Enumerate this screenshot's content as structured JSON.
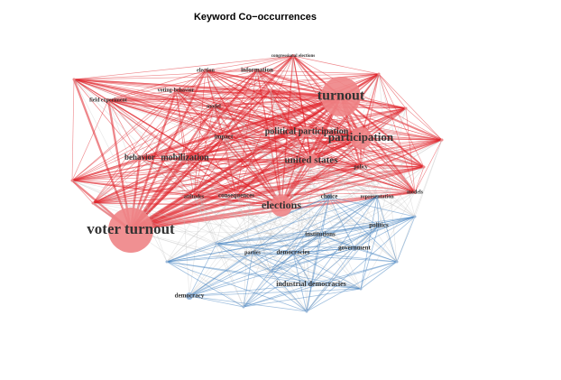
{
  "title": "Keyword Co−occurrences",
  "nodes": [
    {
      "label": "turnout"
    },
    {
      "label": "participation"
    },
    {
      "label": "voter turnout"
    },
    {
      "label": "elections"
    },
    {
      "label": "united states"
    },
    {
      "label": "political participation"
    },
    {
      "label": "behavior"
    },
    {
      "label": "mobilization"
    },
    {
      "label": "field experiment"
    },
    {
      "label": "voting-behavior"
    },
    {
      "label": "election"
    },
    {
      "label": "information"
    },
    {
      "label": "congressional elections"
    },
    {
      "label": "model"
    },
    {
      "label": "impact"
    },
    {
      "label": "attitudes"
    },
    {
      "label": "consequences"
    },
    {
      "label": "policy"
    },
    {
      "label": "models"
    },
    {
      "label": "choice"
    },
    {
      "label": "representation"
    },
    {
      "label": "politics"
    },
    {
      "label": "institutions"
    },
    {
      "label": "parties"
    },
    {
      "label": "democracies"
    },
    {
      "label": "government"
    },
    {
      "label": "industrial democracies"
    },
    {
      "label": "democracy"
    }
  ]
}
